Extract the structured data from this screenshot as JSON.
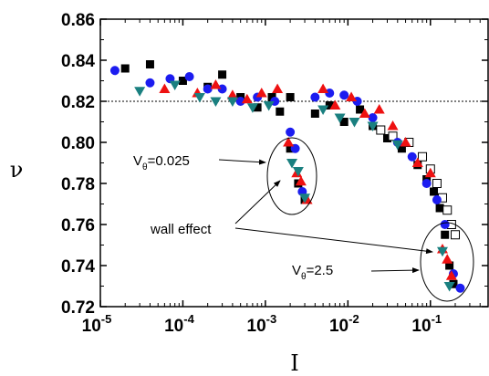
{
  "chart_data": {
    "type": "scatter",
    "title": "",
    "xlabel": "I",
    "ylabel": "ν",
    "xscale": "log",
    "xlim": [
      1e-05,
      0.5
    ],
    "ylim": [
      0.72,
      0.86
    ],
    "xticks": [
      {
        "value": 1e-05,
        "base": "10",
        "exp": "-5"
      },
      {
        "value": 0.0001,
        "base": "10",
        "exp": "-4"
      },
      {
        "value": 0.001,
        "base": "10",
        "exp": "-3"
      },
      {
        "value": 0.01,
        "base": "10",
        "exp": "-2"
      },
      {
        "value": 0.1,
        "base": "10",
        "exp": "-1"
      }
    ],
    "yticks": [
      {
        "value": 0.72,
        "label": "0.72"
      },
      {
        "value": 0.74,
        "label": "0.74"
      },
      {
        "value": 0.76,
        "label": "0.76"
      },
      {
        "value": 0.78,
        "label": "0.78"
      },
      {
        "value": 0.8,
        "label": "0.80"
      },
      {
        "value": 0.82,
        "label": "0.82"
      },
      {
        "value": 0.84,
        "label": "0.84"
      },
      {
        "value": 0.86,
        "label": "0.86"
      }
    ],
    "reference_line": {
      "y": 0.82,
      "style": "dotted"
    },
    "legend": "none",
    "grid": false,
    "series": [
      {
        "marker": "square",
        "color": "#000000",
        "points": [
          [
            2e-05,
            0.836
          ],
          [
            4e-05,
            0.838
          ],
          [
            0.0001,
            0.83
          ],
          [
            0.0002,
            0.827
          ],
          [
            0.0003,
            0.833
          ],
          [
            0.0005,
            0.822
          ],
          [
            0.0008,
            0.817
          ],
          [
            0.0012,
            0.822
          ],
          [
            0.0015,
            0.815
          ],
          [
            0.002,
            0.822
          ],
          [
            0.002,
            0.797
          ],
          [
            0.0025,
            0.78
          ],
          [
            0.003,
            0.772
          ],
          [
            0.004,
            0.814
          ],
          [
            0.006,
            0.818
          ],
          [
            0.009,
            0.81
          ],
          [
            0.014,
            0.816
          ],
          [
            0.02,
            0.808
          ],
          [
            0.03,
            0.802
          ],
          [
            0.045,
            0.797
          ],
          [
            0.07,
            0.789
          ],
          [
            0.09,
            0.782
          ],
          [
            0.11,
            0.776
          ],
          [
            0.13,
            0.768
          ],
          [
            0.15,
            0.755
          ],
          [
            0.17,
            0.74
          ],
          [
            0.19,
            0.731
          ]
        ]
      },
      {
        "marker": "open-square",
        "color": "#000000",
        "points": [
          [
            0.025,
            0.806
          ],
          [
            0.035,
            0.803
          ],
          [
            0.055,
            0.8
          ],
          [
            0.08,
            0.793
          ],
          [
            0.1,
            0.787
          ],
          [
            0.12,
            0.78
          ],
          [
            0.14,
            0.773
          ],
          [
            0.16,
            0.767
          ],
          [
            0.18,
            0.76
          ],
          [
            0.2,
            0.755
          ]
        ]
      },
      {
        "marker": "circle",
        "color": "#1c1cf0",
        "points": [
          [
            1.5e-05,
            0.835
          ],
          [
            4e-05,
            0.829
          ],
          [
            7e-05,
            0.831
          ],
          [
            0.00012,
            0.832
          ],
          [
            0.0002,
            0.826
          ],
          [
            0.0003,
            0.826
          ],
          [
            0.0005,
            0.82
          ],
          [
            0.0008,
            0.822
          ],
          [
            0.0013,
            0.82
          ],
          [
            0.002,
            0.805
          ],
          [
            0.0023,
            0.797
          ],
          [
            0.0028,
            0.776
          ],
          [
            0.004,
            0.822
          ],
          [
            0.006,
            0.824
          ],
          [
            0.009,
            0.823
          ],
          [
            0.013,
            0.82
          ],
          [
            0.02,
            0.812
          ],
          [
            0.04,
            0.8
          ],
          [
            0.06,
            0.793
          ],
          [
            0.09,
            0.78
          ],
          [
            0.12,
            0.772
          ],
          [
            0.15,
            0.76
          ],
          [
            0.19,
            0.736
          ],
          [
            0.23,
            0.729
          ]
        ]
      },
      {
        "marker": "triangle-up",
        "color": "#ee1111",
        "points": [
          [
            6e-05,
            0.826
          ],
          [
            0.00015,
            0.824
          ],
          [
            0.00025,
            0.828
          ],
          [
            0.0004,
            0.823
          ],
          [
            0.0006,
            0.821
          ],
          [
            0.0009,
            0.824
          ],
          [
            0.0014,
            0.826
          ],
          [
            0.0019,
            0.8
          ],
          [
            0.0024,
            0.785
          ],
          [
            0.0027,
            0.781
          ],
          [
            0.0032,
            0.772
          ],
          [
            0.005,
            0.826
          ],
          [
            0.007,
            0.818
          ],
          [
            0.011,
            0.822
          ],
          [
            0.016,
            0.814
          ],
          [
            0.024,
            0.816
          ],
          [
            0.035,
            0.808
          ],
          [
            0.05,
            0.8
          ],
          [
            0.07,
            0.79
          ],
          [
            0.1,
            0.785
          ],
          [
            0.14,
            0.748
          ],
          [
            0.16,
            0.743
          ],
          [
            0.18,
            0.735
          ]
        ]
      },
      {
        "marker": "triangle-down",
        "color": "#1a8080",
        "points": [
          [
            3e-05,
            0.825
          ],
          [
            8e-05,
            0.828
          ],
          [
            0.00016,
            0.822
          ],
          [
            0.00025,
            0.82
          ],
          [
            0.0004,
            0.82
          ],
          [
            0.0007,
            0.817
          ],
          [
            0.0011,
            0.818
          ],
          [
            0.0021,
            0.79
          ],
          [
            0.0025,
            0.786
          ],
          [
            0.003,
            0.773
          ],
          [
            0.005,
            0.816
          ],
          [
            0.008,
            0.812
          ],
          [
            0.012,
            0.81
          ],
          [
            0.02,
            0.808
          ],
          [
            0.04,
            0.799
          ],
          [
            0.14,
            0.747
          ],
          [
            0.17,
            0.73
          ]
        ]
      }
    ],
    "annotations": [
      {
        "id": "v1",
        "text": "V",
        "sub": "θ",
        "suffix": "=0.025"
      },
      {
        "id": "wall",
        "text": "wall effect"
      },
      {
        "id": "v2",
        "text": "V",
        "sub": "θ",
        "suffix": "=2.5"
      }
    ]
  }
}
